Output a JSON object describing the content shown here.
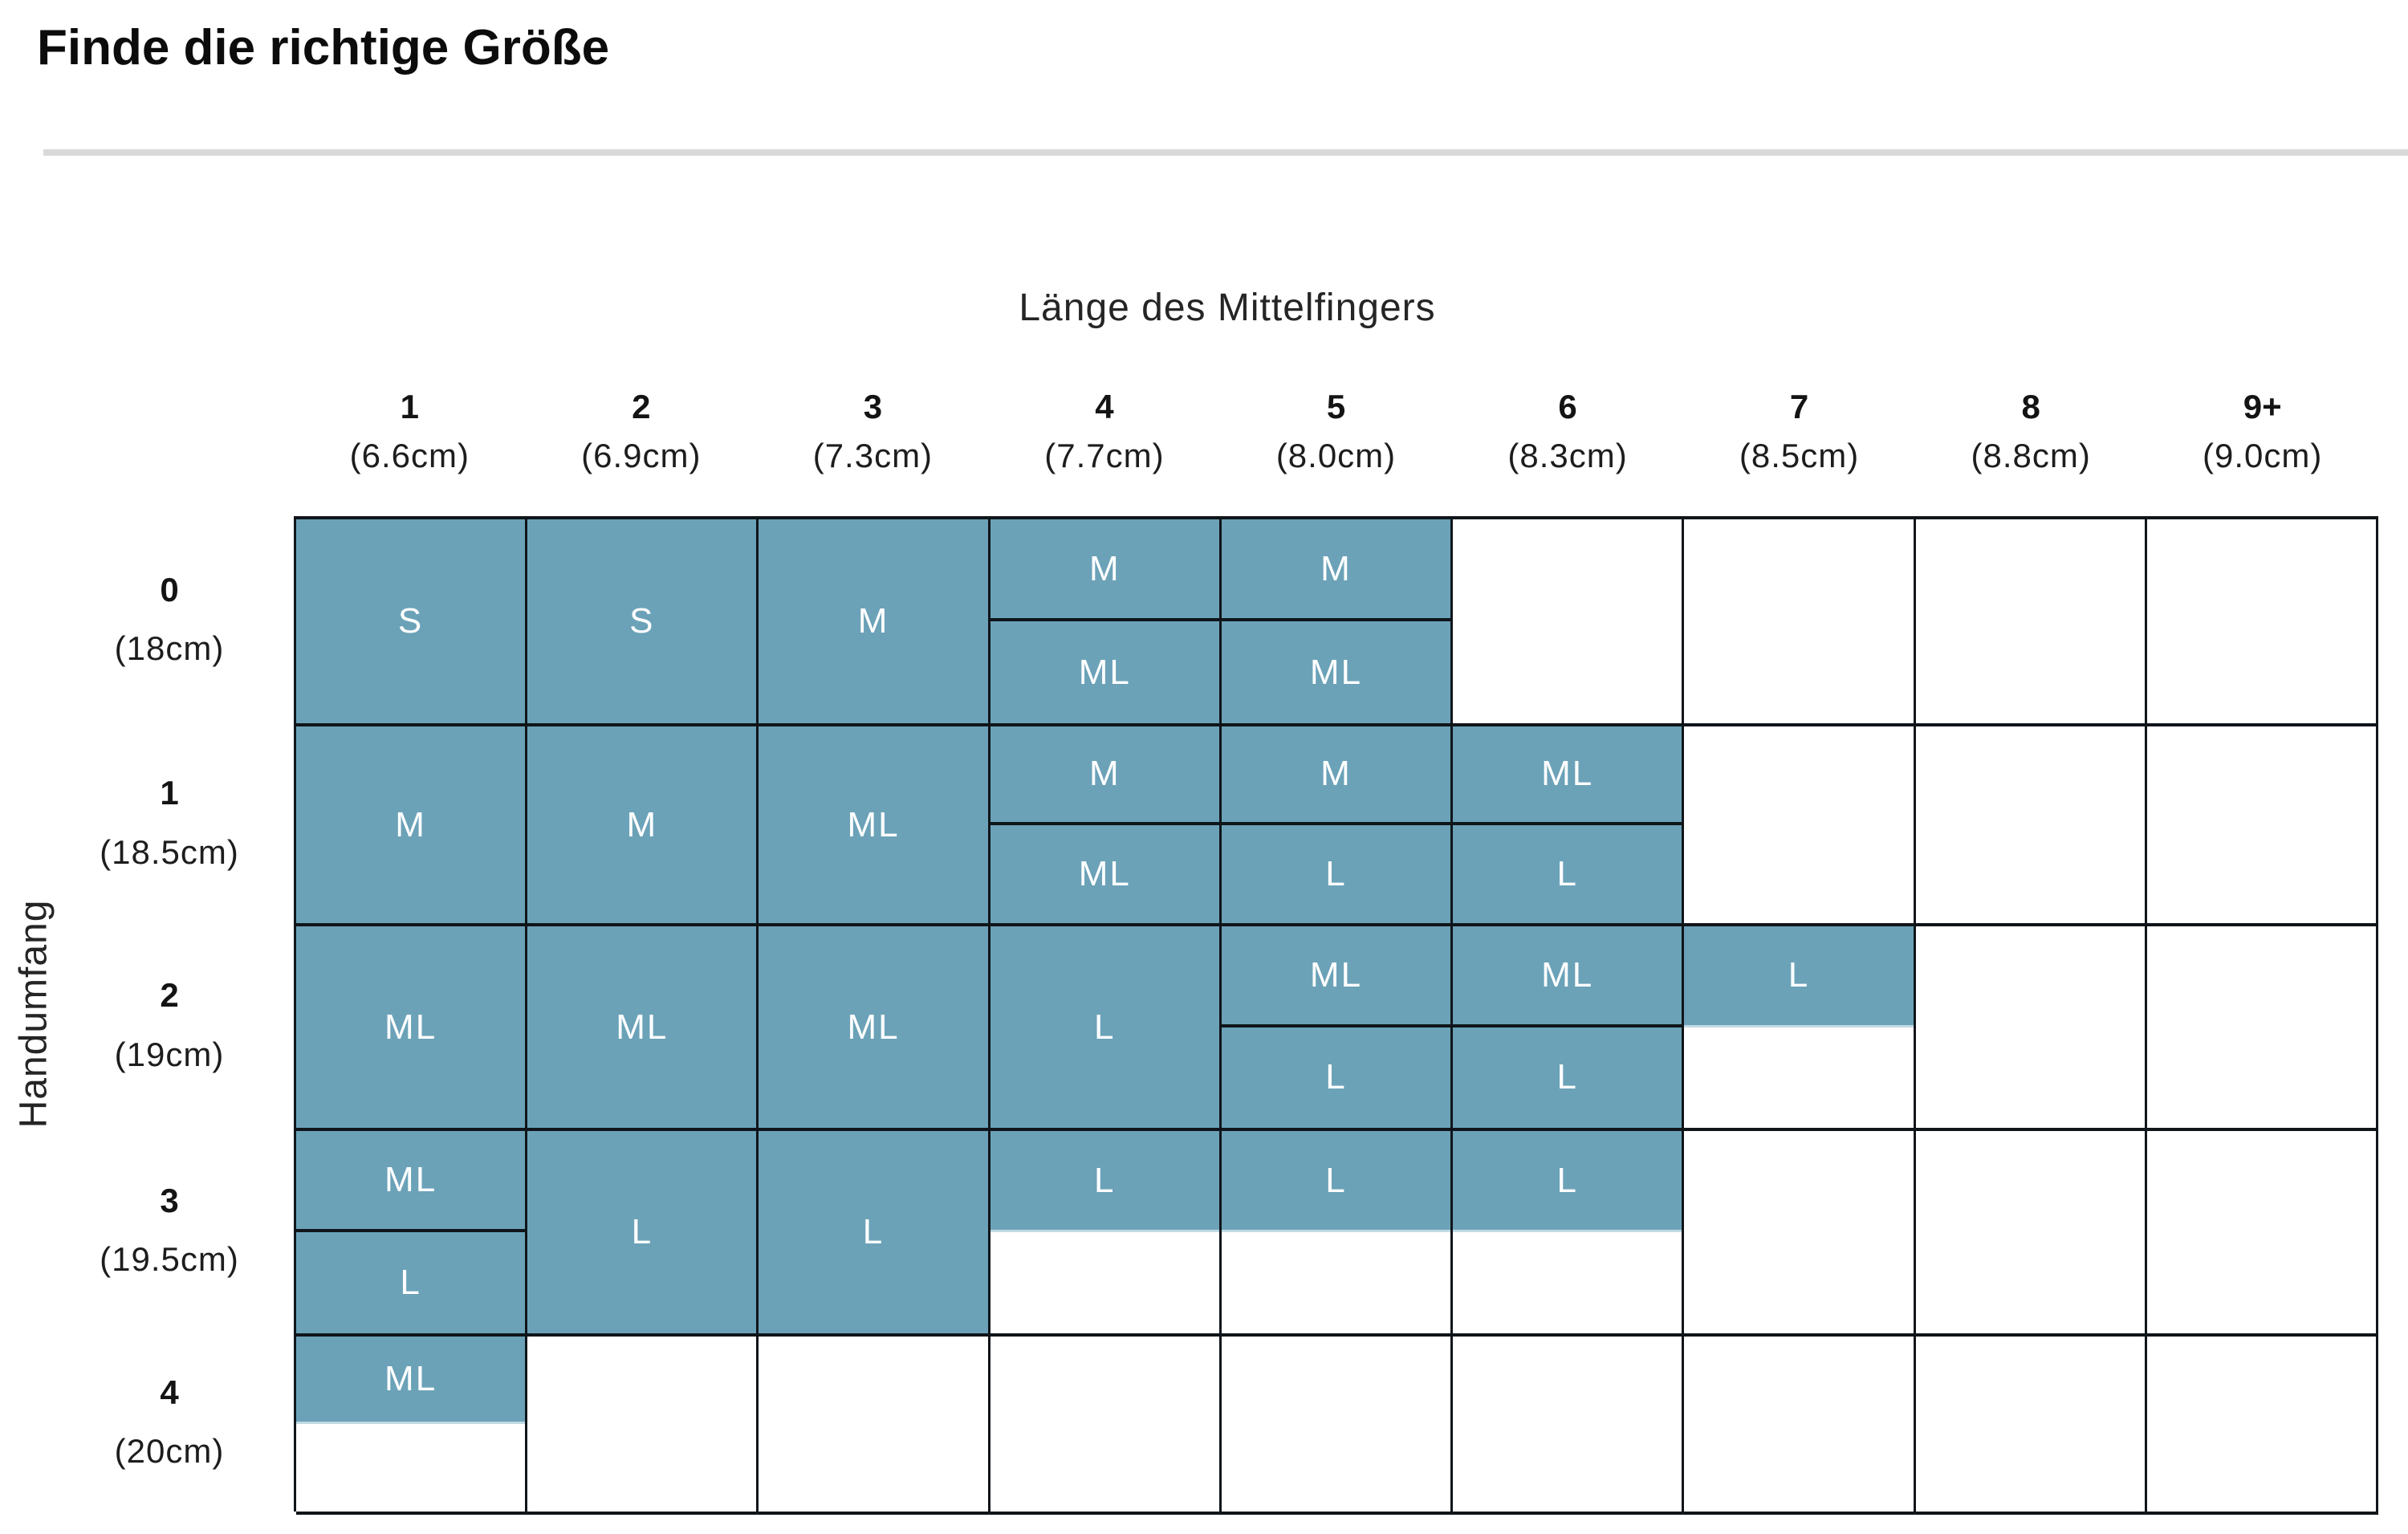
{
  "page": {
    "title": "Finde die richtige Größe"
  },
  "chart_data": {
    "type": "heatmap",
    "title": "Finde die richtige Größe",
    "xlabel": "Länge des Mittelfingers",
    "ylabel": "Handumfang",
    "legend_position": "none",
    "grid": true,
    "size_values": [
      "S",
      "M",
      "ML",
      "L"
    ],
    "x_categories": [
      {
        "num": "1",
        "cm": "(6.6cm)"
      },
      {
        "num": "2",
        "cm": "(6.9cm)"
      },
      {
        "num": "3",
        "cm": "(7.3cm)"
      },
      {
        "num": "4",
        "cm": "(7.7cm)"
      },
      {
        "num": "5",
        "cm": "(8.0cm)"
      },
      {
        "num": "6",
        "cm": "(8.3cm)"
      },
      {
        "num": "7",
        "cm": "(8.5cm)"
      },
      {
        "num": "8",
        "cm": "(8.8cm)"
      },
      {
        "num": "9+",
        "cm": "(9.0cm)"
      }
    ],
    "y_categories": [
      {
        "num": "0",
        "cm": "(18cm)"
      },
      {
        "num": "1",
        "cm": "(18.5cm)"
      },
      {
        "num": "2",
        "cm": "(19cm)"
      },
      {
        "num": "3",
        "cm": "(19.5cm)"
      },
      {
        "num": "4",
        "cm": "(20cm)"
      }
    ],
    "cells": [
      [
        {
          "type": "full",
          "label": "S"
        },
        {
          "type": "full",
          "label": "S"
        },
        {
          "type": "full",
          "label": "M"
        },
        {
          "type": "split",
          "top": "M",
          "bottom": "ML"
        },
        {
          "type": "split",
          "top": "M",
          "bottom": "ML"
        },
        {
          "type": "empty"
        },
        {
          "type": "empty"
        },
        {
          "type": "empty"
        },
        {
          "type": "empty"
        }
      ],
      [
        {
          "type": "full",
          "label": "M"
        },
        {
          "type": "full",
          "label": "M"
        },
        {
          "type": "full",
          "label": "ML"
        },
        {
          "type": "split",
          "top": "M",
          "bottom": "ML"
        },
        {
          "type": "split",
          "top": "M",
          "bottom": "L"
        },
        {
          "type": "split",
          "top": "ML",
          "bottom": "L"
        },
        {
          "type": "empty"
        },
        {
          "type": "empty"
        },
        {
          "type": "empty"
        }
      ],
      [
        {
          "type": "full",
          "label": "ML"
        },
        {
          "type": "full",
          "label": "ML"
        },
        {
          "type": "full",
          "label": "ML"
        },
        {
          "type": "full",
          "label": "L"
        },
        {
          "type": "split",
          "top": "ML",
          "bottom": "L"
        },
        {
          "type": "split",
          "top": "ML",
          "bottom": "L"
        },
        {
          "type": "half",
          "top": "L"
        },
        {
          "type": "empty"
        },
        {
          "type": "empty"
        }
      ],
      [
        {
          "type": "split",
          "top": "ML",
          "bottom": "L"
        },
        {
          "type": "full",
          "label": "L"
        },
        {
          "type": "full",
          "label": "L"
        },
        {
          "type": "half",
          "top": "L"
        },
        {
          "type": "half",
          "top": "L"
        },
        {
          "type": "half",
          "top": "L"
        },
        {
          "type": "empty"
        },
        {
          "type": "empty"
        },
        {
          "type": "empty"
        }
      ],
      [
        {
          "type": "half",
          "top": "ML"
        },
        {
          "type": "empty"
        },
        {
          "type": "empty"
        },
        {
          "type": "empty"
        },
        {
          "type": "empty"
        },
        {
          "type": "empty"
        },
        {
          "type": "empty"
        },
        {
          "type": "empty"
        },
        {
          "type": "empty"
        }
      ]
    ],
    "colors": {
      "cell_fill": "#6BA2B8",
      "grid_line": "#10151A",
      "cell_text": "#FFFFFF",
      "heading_text": "#111111",
      "divider": "#D9D9D9"
    }
  }
}
